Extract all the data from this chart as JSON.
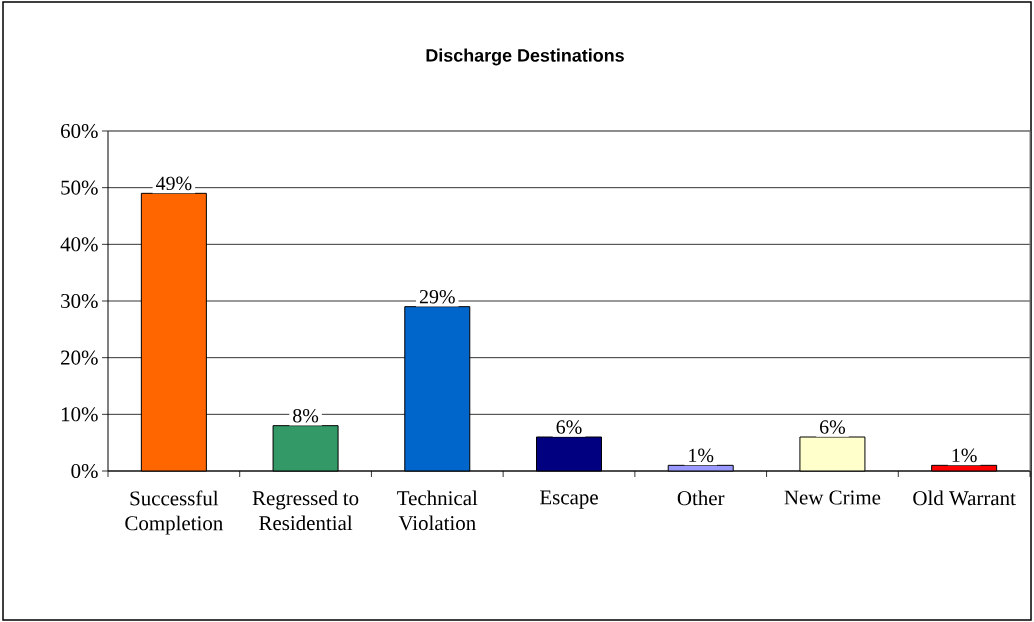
{
  "chart_data": {
    "type": "bar",
    "title": "Discharge Destinations",
    "categories": [
      "Successful Completion",
      "Regressed to Residential",
      "Technical Violation",
      "Escape",
      "Other",
      "New Crime",
      "Old Warrant"
    ],
    "values": [
      49,
      8,
      29,
      6,
      1,
      6,
      1
    ],
    "colors": [
      "#ff6600",
      "#339966",
      "#0066cc",
      "#000080",
      "#9999ff",
      "#ffffcc",
      "#ff0000"
    ],
    "value_labels": [
      "49%",
      "8%",
      "29%",
      "6%",
      "1%",
      "6%",
      "1%"
    ],
    "ylim": [
      0,
      60
    ],
    "yticks": [
      {
        "value": 0,
        "label": "0%"
      },
      {
        "value": 10,
        "label": "10%"
      },
      {
        "value": 20,
        "label": "20%"
      },
      {
        "value": 30,
        "label": "30%"
      },
      {
        "value": 40,
        "label": "40%"
      },
      {
        "value": 50,
        "label": "50%"
      },
      {
        "value": 60,
        "label": "60%"
      }
    ],
    "grid": "y"
  }
}
